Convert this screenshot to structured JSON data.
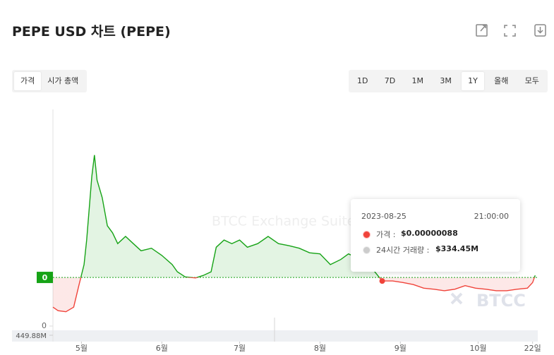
{
  "header": {
    "title": "PEPE USD 차트 (PEPE)"
  },
  "tabs": [
    "가격",
    "시가 총액"
  ],
  "active_tab": 0,
  "ranges": [
    "1D",
    "7D",
    "1M",
    "3M",
    "1Y",
    "올해",
    "모두"
  ],
  "active_range": 4,
  "chart_data": {
    "type": "line",
    "watermark": "BTCC Exchange Suite",
    "logo": "BTCC",
    "x": [
      "2023-04-20",
      "2023-04-22",
      "2023-04-25",
      "2023-04-28",
      "2023-04-30",
      "2023-05-02",
      "2023-05-03",
      "2023-05-05",
      "2023-05-06",
      "2023-05-07",
      "2023-05-09",
      "2023-05-11",
      "2023-05-13",
      "2023-05-15",
      "2023-05-18",
      "2023-05-21",
      "2023-05-24",
      "2023-05-28",
      "2023-06-01",
      "2023-06-05",
      "2023-06-07",
      "2023-06-10",
      "2023-06-14",
      "2023-06-17",
      "2023-06-20",
      "2023-06-22",
      "2023-06-25",
      "2023-06-28",
      "2023-07-01",
      "2023-07-04",
      "2023-07-08",
      "2023-07-12",
      "2023-07-16",
      "2023-07-20",
      "2023-07-24",
      "2023-07-28",
      "2023-08-01",
      "2023-08-05",
      "2023-08-09",
      "2023-08-12",
      "2023-08-15",
      "2023-08-21",
      "2023-08-25",
      "2023-08-29",
      "2023-09-02",
      "2023-09-06",
      "2023-09-10",
      "2023-09-14",
      "2023-09-18",
      "2023-09-22",
      "2023-09-26",
      "2023-09-30",
      "2023-10-04",
      "2023-10-08",
      "2023-10-12",
      "2023-10-16",
      "2023-10-20",
      "2023-10-22",
      "2023-10-23"
    ],
    "values": [
      3.7e-07,
      3e-07,
      2.8e-07,
      3.7e-07,
      7.9e-07,
      1.2e-06,
      1.68e-06,
      2.92e-06,
      3.34e-06,
      2.85e-06,
      2.51e-06,
      1.96e-06,
      1.82e-06,
      1.61e-06,
      1.75e-06,
      1.61e-06,
      1.47e-06,
      1.52e-06,
      1.38e-06,
      1.2e-06,
      1.06e-06,
      9.6e-07,
      9.4e-07,
      9.9e-07,
      1.06e-06,
      1.54e-06,
      1.68e-06,
      1.61e-06,
      1.68e-06,
      1.54e-06,
      1.61e-06,
      1.75e-06,
      1.61e-06,
      1.57e-06,
      1.52e-06,
      1.43e-06,
      1.41e-06,
      1.2e-06,
      1.3e-06,
      1.41e-06,
      1.34e-06,
      1.13e-06,
      8.8e-07,
      8.8e-07,
      8.5e-07,
      8.1e-07,
      7.4e-07,
      7.2e-07,
      6.9e-07,
      7.2e-07,
      7.9e-07,
      7.4e-07,
      7.2e-07,
      6.9e-07,
      6.9e-07,
      7.2e-07,
      7.4e-07,
      8.5e-07,
      9.9e-07
    ],
    "color_up": "#16a316",
    "color_down": "#f0433a",
    "xlim": [
      "2023-04-20",
      "2023-10-24"
    ],
    "xticks": [
      {
        "value": "2023-05-01",
        "label": "5월"
      },
      {
        "value": "2023-06-01",
        "label": "6월"
      },
      {
        "value": "2023-07-01",
        "label": "7월"
      },
      {
        "value": "2023-08-01",
        "label": "8월"
      },
      {
        "value": "2023-09-01",
        "label": "9월"
      },
      {
        "value": "2023-10-01",
        "label": "10월"
      },
      {
        "value": "2023-10-22",
        "label": "22일"
      }
    ],
    "ylim": [
      0,
      4.3e-06
    ],
    "yticks": [
      {
        "value": 0,
        "label": "0"
      }
    ],
    "baseline": {
      "value": 9.5e-07,
      "label": "0"
    },
    "volume_ticks": [
      {
        "value": 449880000,
        "label": "449.88M"
      }
    ],
    "tooltip": {
      "date": "2023-08-25",
      "time": "21:00:00",
      "price_label": "가격 :",
      "price": "$0.00000088",
      "volume_label": "24시간 거래량 :",
      "volume": "$334.45M"
    }
  }
}
